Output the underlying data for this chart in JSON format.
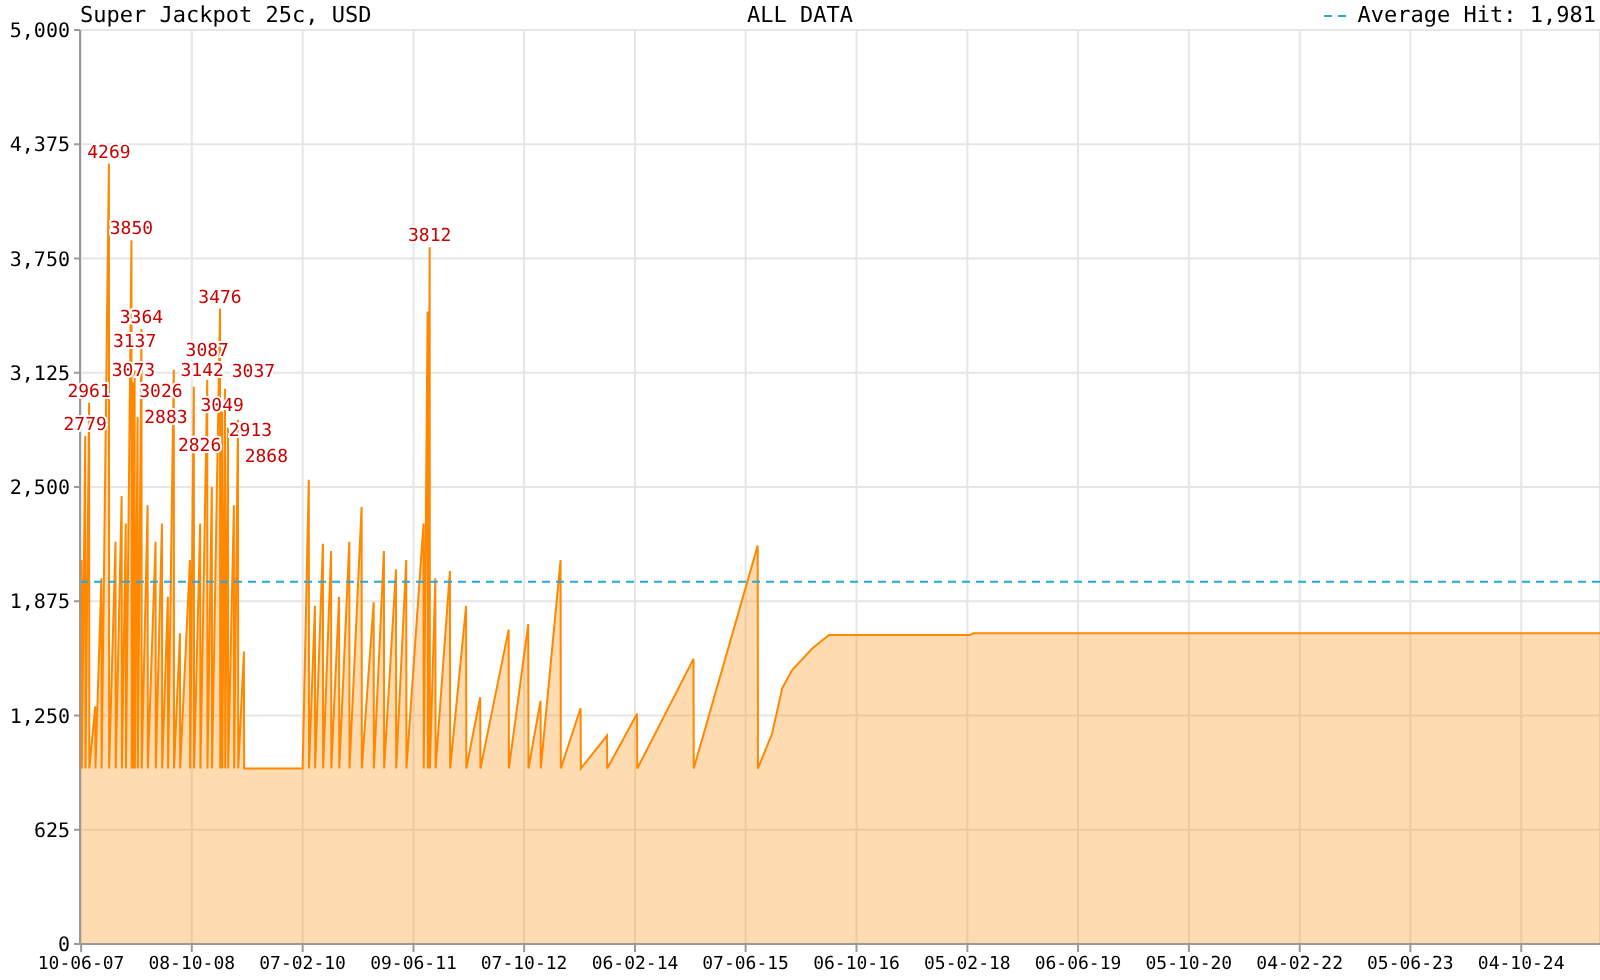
{
  "chart_data": {
    "type": "area",
    "title": "Super Jackpot 25c, USD",
    "subtitle": "ALL DATA",
    "xlim": [
      "2007-06-05",
      "2025-09-15"
    ],
    "xticks": [
      {
        "value": "2007-06-10",
        "label": "10-06-07"
      },
      {
        "value": "2008-10-08",
        "label": "08-10-08"
      },
      {
        "value": "2010-02-07",
        "label": "07-02-10"
      },
      {
        "value": "2011-06-09",
        "label": "09-06-11"
      },
      {
        "value": "2012-10-07",
        "label": "07-10-12"
      },
      {
        "value": "2014-02-06",
        "label": "06-02-14"
      },
      {
        "value": "2015-06-07",
        "label": "07-06-15"
      },
      {
        "value": "2016-10-06",
        "label": "06-10-16"
      },
      {
        "value": "2018-02-05",
        "label": "05-02-18"
      },
      {
        "value": "2019-06-06",
        "label": "06-06-19"
      },
      {
        "value": "2020-10-05",
        "label": "05-10-20"
      },
      {
        "value": "2022-02-04",
        "label": "04-02-22"
      },
      {
        "value": "2023-06-05",
        "label": "05-06-23"
      },
      {
        "value": "2024-10-04",
        "label": "04-10-24"
      }
    ],
    "ylim": [
      0,
      5000
    ],
    "yticks": [
      0,
      625,
      {
        "value": 1250,
        "label": "1,250"
      },
      {
        "value": 1875,
        "label": "1,875"
      },
      {
        "value": 2500,
        "label": "2,500"
      },
      {
        "value": 3125,
        "label": "3,125"
      },
      {
        "value": 3750,
        "label": "3,750"
      },
      {
        "value": 4375,
        "label": "4,375"
      },
      {
        "value": 5000,
        "label": "5,000"
      }
    ],
    "grid": true,
    "ref_lines": [
      {
        "axis": "y",
        "value": 1981,
        "label": "Average Hit: 1,981",
        "color": "#2ba6d9",
        "line_style": "dashed"
      }
    ],
    "series": [
      {
        "color": "#ff8800",
        "x": [
          "2007-06-06",
          "2007-06-12",
          "2007-06-13",
          "2007-06-28",
          "2007-06-29",
          "2007-07-15",
          "2007-07-16",
          "2007-08-11",
          "2007-08-12",
          "2007-09-07",
          "2007-09-08",
          "2007-10-10",
          "2007-10-11",
          "2007-11-08",
          "2007-11-09",
          "2007-12-05",
          "2007-12-06",
          "2007-12-23",
          "2007-12-24",
          "2008-01-17",
          "2008-01-18",
          "2008-01-22",
          "2008-01-23",
          "2008-01-26",
          "2008-01-27",
          "2008-01-31",
          "2008-02-01",
          "2008-02-13",
          "2008-02-14",
          "2008-03-01",
          "2008-03-02",
          "2008-03-28",
          "2008-03-29",
          "2008-05-02",
          "2008-05-03",
          "2008-05-30",
          "2008-05-31",
          "2008-06-25",
          "2008-06-26",
          "2008-07-21",
          "2008-07-22",
          "2008-08-17",
          "2008-08-18",
          "2008-09-30",
          "2008-10-01",
          "2008-10-17",
          "2008-10-18",
          "2008-11-14",
          "2008-11-15",
          "2008-12-15",
          "2008-12-16",
          "2009-01-04",
          "2009-01-05",
          "2009-02-09",
          "2009-02-10",
          "2009-02-18",
          "2009-02-19",
          "2009-03-03",
          "2009-03-04",
          "2009-03-16",
          "2009-03-17",
          "2009-04-11",
          "2009-04-12",
          "2009-04-29",
          "2009-04-30",
          "2009-05-25",
          "2009-05-26",
          "2010-02-07",
          "2010-03-06",
          "2010-03-07",
          "2010-04-02",
          "2010-04-03",
          "2010-05-07",
          "2010-05-08",
          "2010-06-12",
          "2010-06-13",
          "2010-07-17",
          "2010-07-18",
          "2010-08-31",
          "2010-09-01",
          "2010-10-24",
          "2010-10-25",
          "2010-12-16",
          "2010-12-17",
          "2011-01-30",
          "2011-01-31",
          "2011-03-24",
          "2011-03-25",
          "2011-05-08",
          "2011-05-09",
          "2011-07-23",
          "2011-07-24",
          "2011-08-10",
          "2011-08-11",
          "2011-08-19",
          "2011-08-20",
          "2011-09-13",
          "2011-09-14",
          "2011-11-16",
          "2011-11-17",
          "2012-01-26",
          "2012-01-27",
          "2012-03-28",
          "2012-03-29",
          "2012-07-31",
          "2012-08-01",
          "2012-10-25",
          "2012-10-26",
          "2012-12-18",
          "2012-12-19",
          "2013-03-16",
          "2013-03-17",
          "2013-06-12",
          "2013-06-13",
          "2013-10-06",
          "2013-10-07",
          "2014-02-15",
          "2014-02-16",
          "2014-10-21",
          "2014-10-22",
          "2015-07-30",
          "2015-07-31",
          "2015-10-01",
          "2015-11-15",
          "2015-12-29",
          "2016-03-28",
          "2016-06-07",
          "2018-02-14",
          "2018-03-04",
          "2025-09-15"
        ],
        "values": [
          960,
          2100,
          960,
          2779,
          960,
          2961,
          960,
          1300,
          960,
          2000,
          960,
          4269,
          960,
          2200,
          960,
          2450,
          960,
          2300,
          960,
          3850,
          960,
          3026,
          960,
          3073,
          960,
          3137,
          960,
          2883,
          960,
          3364,
          960,
          2400,
          960,
          2200,
          960,
          2300,
          960,
          1900,
          960,
          3142,
          960,
          1700,
          960,
          2100,
          960,
          3049,
          960,
          2300,
          960,
          3087,
          960,
          2500,
          960,
          3476,
          960,
          2913,
          960,
          3037,
          960,
          2826,
          960,
          2400,
          960,
          2868,
          960,
          1600,
          960,
          960,
          2540,
          960,
          1850,
          960,
          2190,
          960,
          2150,
          960,
          1900,
          960,
          2200,
          960,
          2390,
          960,
          1870,
          960,
          2150,
          960,
          2050,
          960,
          2100,
          960,
          2300,
          960,
          3460,
          960,
          3812,
          960,
          2000,
          960,
          2040,
          960,
          1850,
          960,
          1350,
          960,
          1720,
          960,
          1750,
          960,
          1330,
          960,
          2100,
          960,
          1290,
          960,
          1140,
          960,
          1260,
          960,
          1560,
          960,
          2180,
          960,
          1150,
          1400,
          1500,
          1620,
          1690,
          1690,
          1700,
          1700
        ],
        "value_labels": [
          null,
          null,
          null,
          "2779",
          null,
          "2961",
          null,
          null,
          null,
          null,
          null,
          "4269",
          null,
          null,
          null,
          null,
          null,
          null,
          null,
          "3850",
          null,
          "3026",
          null,
          "3073",
          null,
          "3137",
          null,
          "2883",
          null,
          "3364",
          null,
          null,
          null,
          null,
          null,
          null,
          null,
          null,
          null,
          "3142",
          null,
          null,
          null,
          null,
          null,
          "3049",
          null,
          null,
          null,
          "3087",
          null,
          null,
          null,
          "3476",
          null,
          "2913",
          null,
          "3037",
          null,
          "2826",
          null,
          null,
          null,
          "2868",
          null,
          null,
          null,
          null,
          null,
          null,
          null,
          null,
          null,
          null,
          null,
          null,
          null,
          null,
          null,
          null,
          null,
          null,
          null,
          null,
          null,
          null,
          null,
          null,
          null,
          null,
          null,
          null,
          null,
          null,
          "3812",
          null,
          null,
          null,
          null,
          null,
          null,
          null,
          null,
          null,
          null,
          null,
          null,
          null,
          null,
          null,
          null,
          null,
          null,
          null,
          null,
          null,
          null,
          null,
          null,
          null,
          null,
          null,
          null,
          null,
          null,
          null,
          null,
          null,
          null,
          null
        ]
      }
    ]
  }
}
